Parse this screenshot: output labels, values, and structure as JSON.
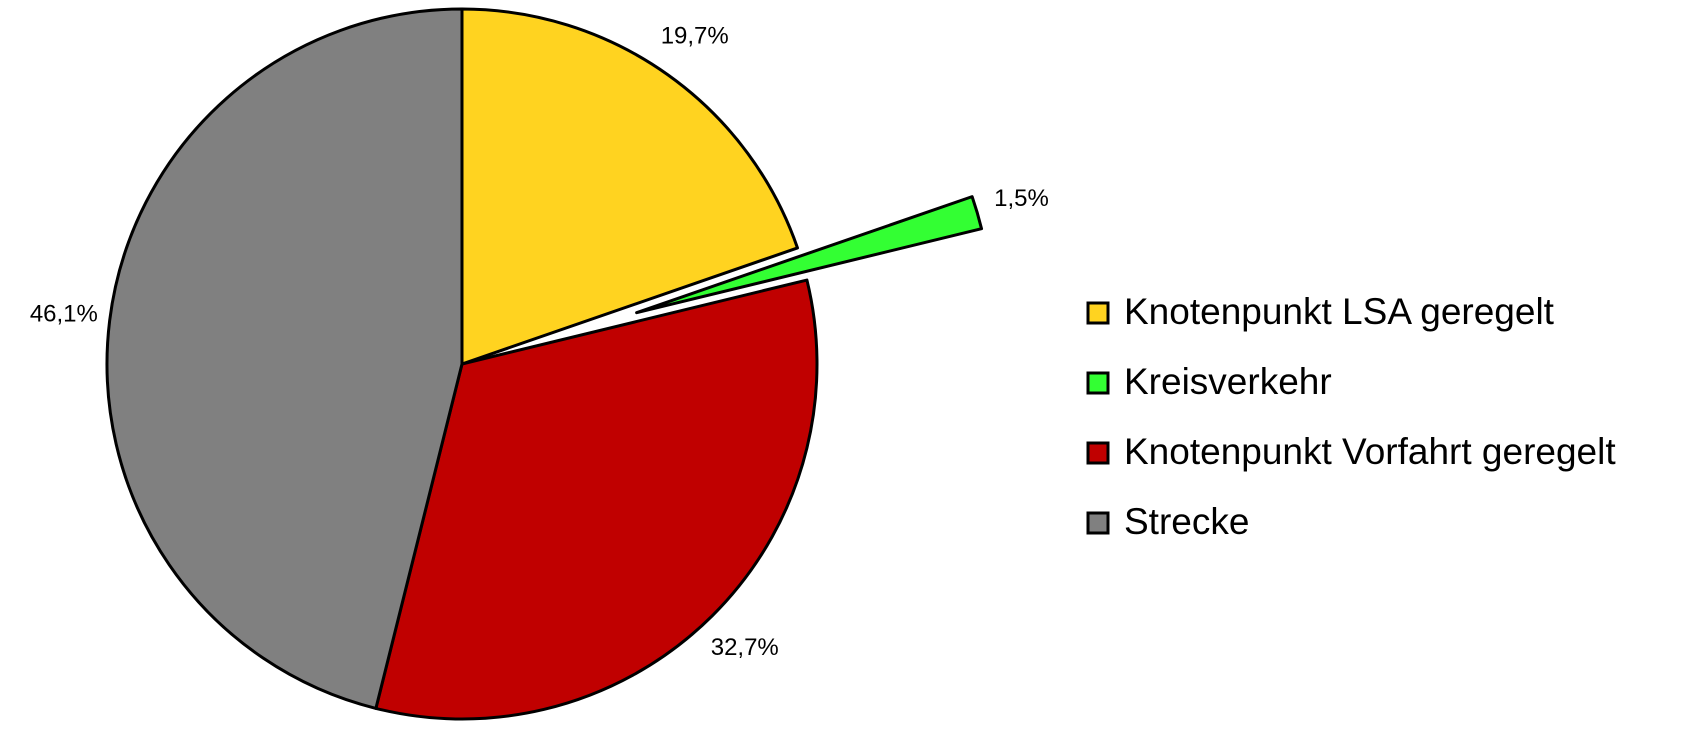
{
  "chart_data": {
    "type": "pie",
    "categories": [
      "Knotenpunkt LSA geregelt",
      "Kreisverkehr",
      "Knotenpunkt Vorfahrt geregelt",
      "Strecke"
    ],
    "values": [
      19.7,
      1.5,
      32.7,
      46.1
    ],
    "value_labels": [
      "19,7%",
      "1,5%",
      "32,7%",
      "46,1%"
    ],
    "colors": [
      "#ffd320",
      "#33ff33",
      "#c00000",
      "#808080"
    ],
    "explode": [
      false,
      true,
      false,
      false
    ],
    "legend": "right"
  }
}
